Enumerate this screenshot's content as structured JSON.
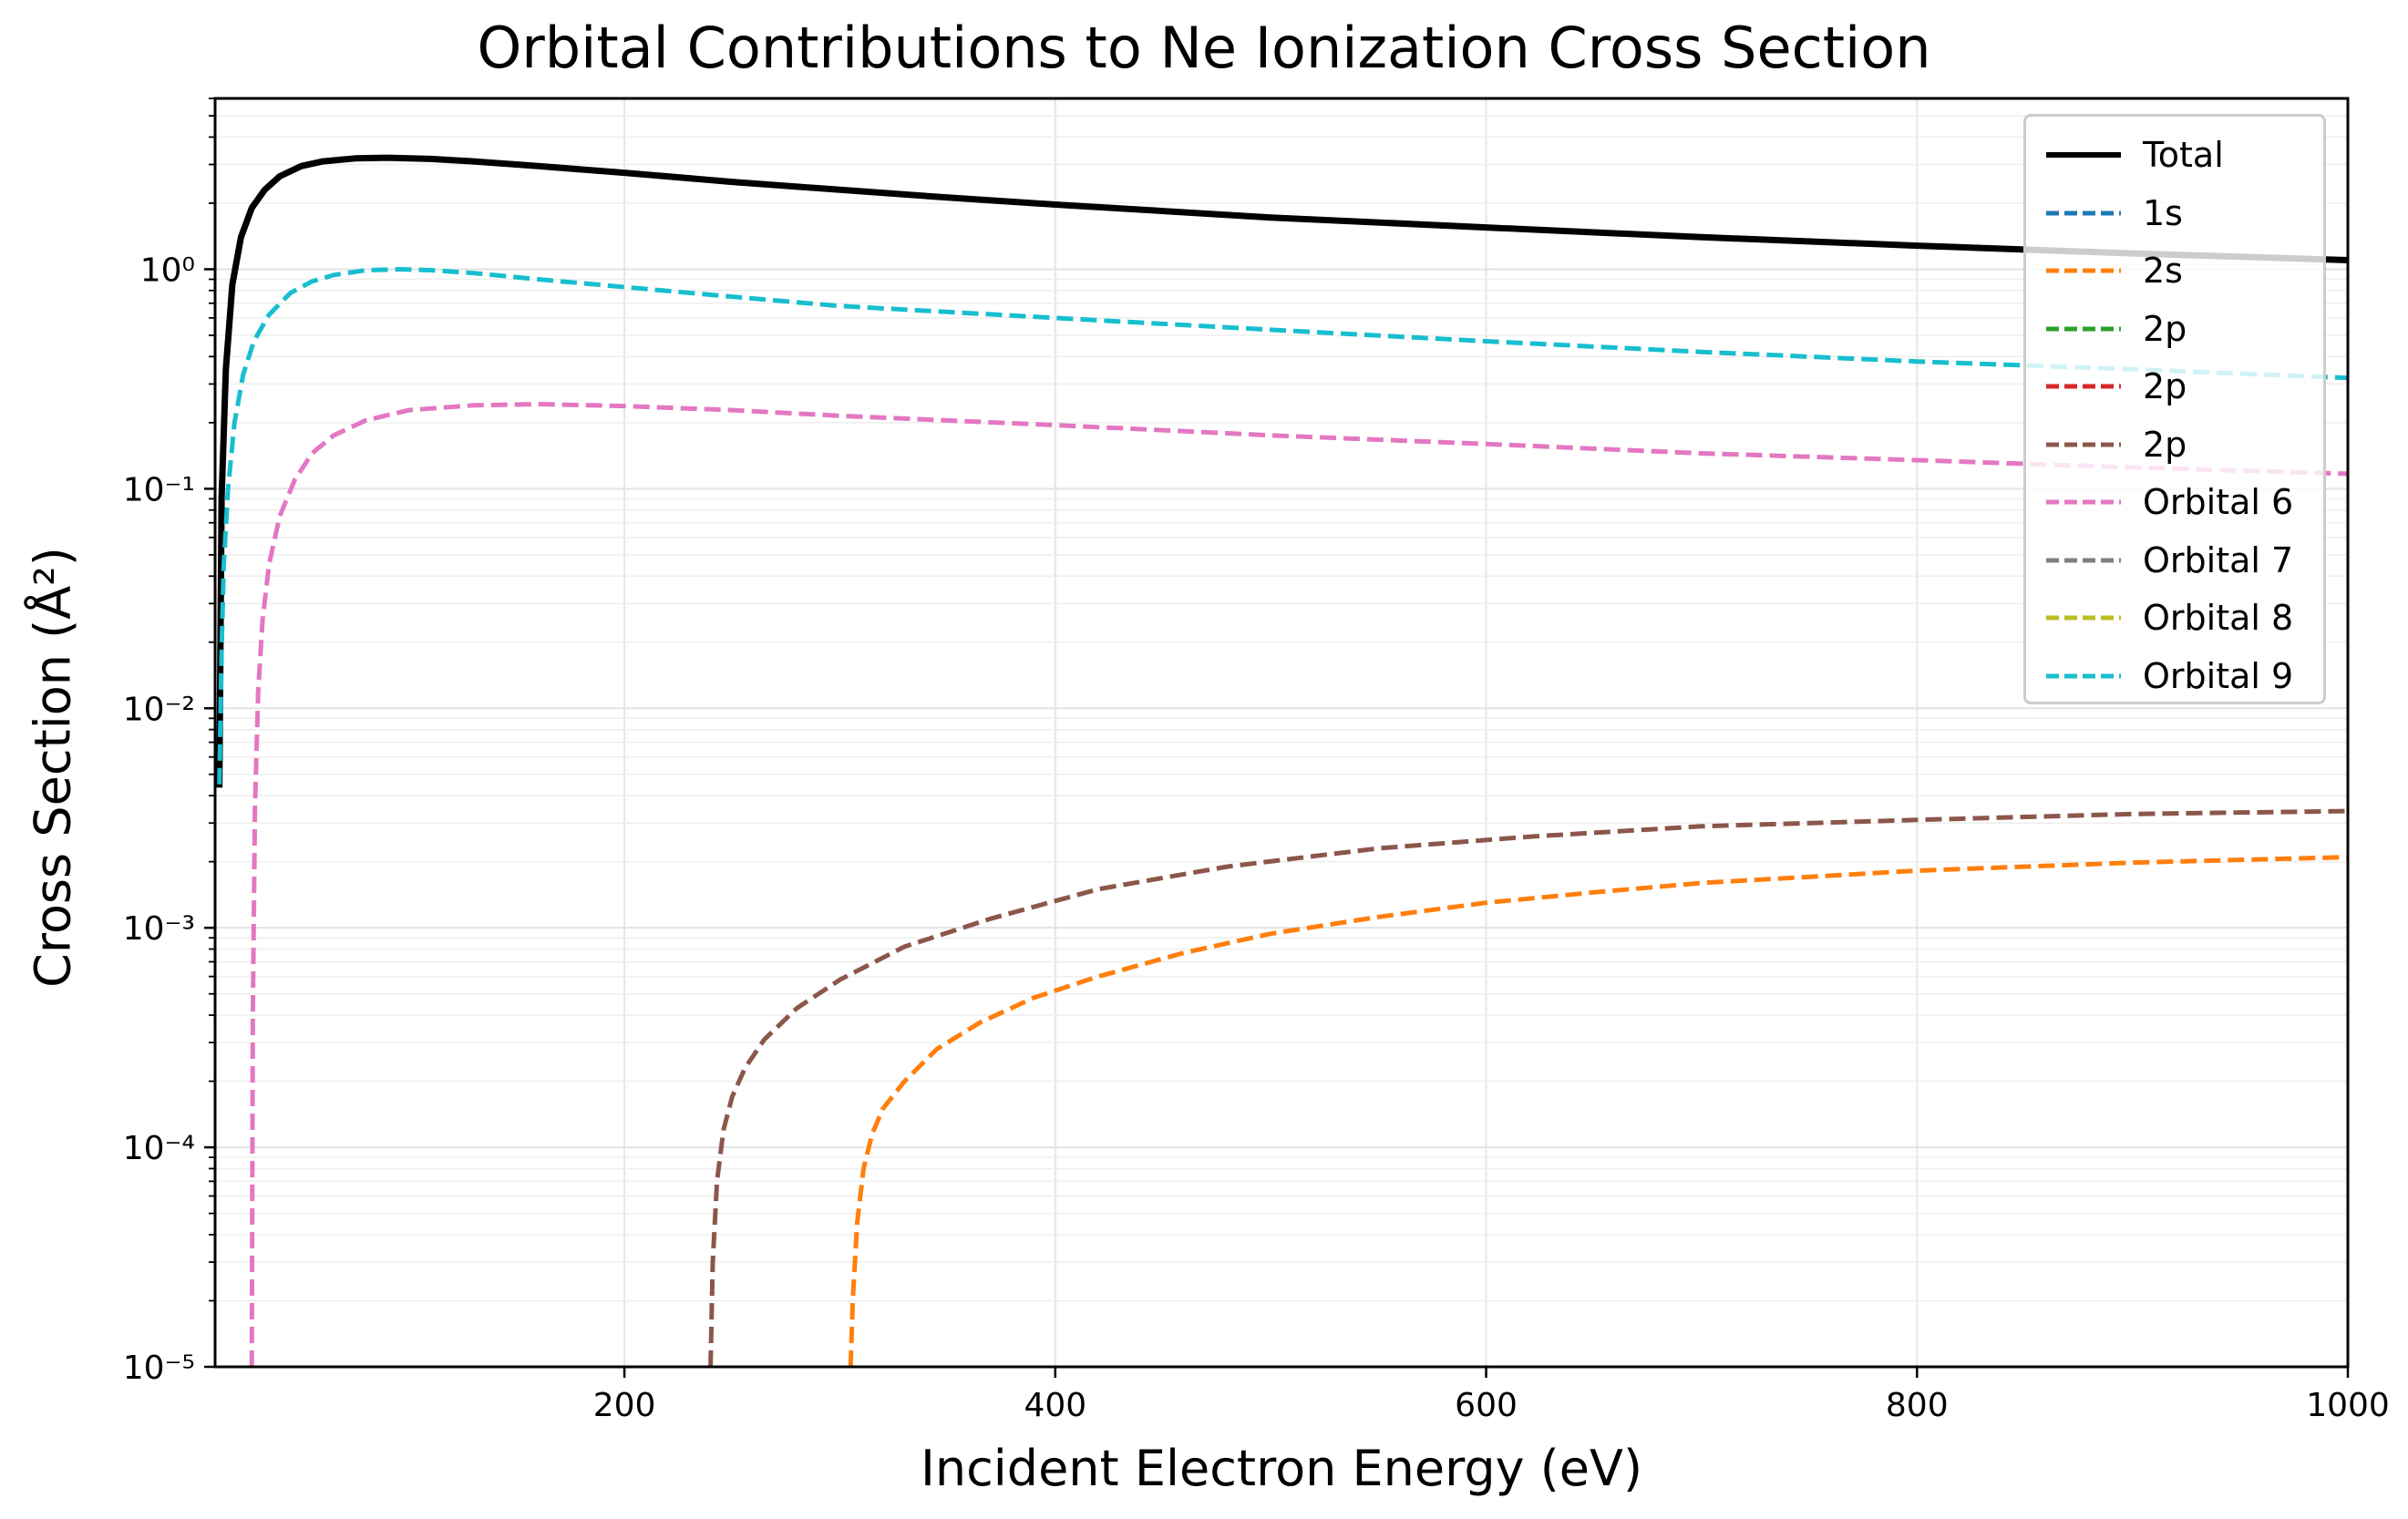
{
  "chart_data": {
    "type": "line",
    "title": "Orbital Contributions to Ne Ionization Cross Section",
    "xlabel": "Incident Electron Energy (eV)",
    "ylabel": "Cross Section (Å²)",
    "xlim": [
      10,
      1000
    ],
    "ylim": [
      1e-05,
      6
    ],
    "xscale": "linear",
    "yscale": "log",
    "xticks": [
      200,
      400,
      600,
      800,
      1000
    ],
    "yticks": [
      1e-05,
      0.0001,
      0.001,
      0.01,
      0.1,
      1
    ],
    "ytick_labels": [
      "10⁻⁵",
      "10⁻⁴",
      "10⁻³",
      "10⁻²",
      "10⁻¹",
      "10⁰"
    ],
    "grid": "on",
    "legend_position": "top-right",
    "series": [
      {
        "name": "Total",
        "color": "#000000",
        "style": "solid",
        "x": [
          12,
          13,
          15,
          18,
          22,
          27,
          33,
          40,
          50,
          60,
          75,
          90,
          110,
          130,
          160,
          200,
          250,
          300,
          350,
          400,
          500,
          600,
          700,
          800,
          900,
          1000
        ],
        "y": [
          0.0045,
          0.09,
          0.35,
          0.85,
          1.4,
          1.9,
          2.3,
          2.65,
          2.95,
          3.1,
          3.2,
          3.22,
          3.18,
          3.1,
          2.95,
          2.75,
          2.5,
          2.3,
          2.12,
          1.97,
          1.72,
          1.55,
          1.4,
          1.28,
          1.18,
          1.1
        ]
      },
      {
        "name": "1s",
        "color": "#1f77b4",
        "style": "dashed",
        "x": [],
        "y": []
      },
      {
        "name": "2s",
        "color": "#ff7f0e",
        "style": "dashed",
        "x": [
          305,
          306,
          308,
          311,
          315,
          320,
          330,
          345,
          365,
          390,
          420,
          460,
          500,
          550,
          600,
          650,
          700,
          800,
          900,
          1000
        ],
        "y": [
          1e-05,
          2e-05,
          4.5e-05,
          8e-05,
          0.000115,
          0.00015,
          0.0002,
          0.00028,
          0.00037,
          0.00048,
          0.0006,
          0.00077,
          0.00094,
          0.00112,
          0.0013,
          0.00145,
          0.0016,
          0.00182,
          0.00198,
          0.0021
        ]
      },
      {
        "name": "2p",
        "color": "#2ca02c",
        "style": "dashed",
        "x": [],
        "y": []
      },
      {
        "name": "2p",
        "color": "#d62728",
        "style": "dashed",
        "x": [],
        "y": []
      },
      {
        "name": "2p",
        "color": "#8c564b",
        "style": "dashed",
        "x": [
          240,
          241,
          243,
          246,
          250,
          256,
          265,
          280,
          300,
          330,
          370,
          420,
          480,
          550,
          620,
          700,
          800,
          900,
          1000
        ],
        "y": [
          1e-05,
          3e-05,
          7e-05,
          0.00012,
          0.00017,
          0.00023,
          0.00031,
          0.00043,
          0.00058,
          0.00082,
          0.0011,
          0.0015,
          0.0019,
          0.0023,
          0.0026,
          0.0029,
          0.0031,
          0.0033,
          0.0034
        ]
      },
      {
        "name": "Orbital 6",
        "color": "#e377c2",
        "style": "dashed",
        "x": [
          27,
          27.5,
          28.5,
          30,
          32,
          35,
          40,
          47,
          55,
          65,
          80,
          100,
          130,
          160,
          200,
          250,
          300,
          400,
          500,
          600,
          700,
          800,
          900,
          1000
        ],
        "y": [
          1e-05,
          0.0004,
          0.0035,
          0.012,
          0.025,
          0.045,
          0.075,
          0.11,
          0.145,
          0.175,
          0.205,
          0.228,
          0.24,
          0.243,
          0.238,
          0.228,
          0.215,
          0.195,
          0.175,
          0.16,
          0.145,
          0.135,
          0.125,
          0.117
        ]
      },
      {
        "name": "Orbital 7",
        "color": "#7f7f7f",
        "style": "dashed",
        "x": [],
        "y": []
      },
      {
        "name": "Orbital 8",
        "color": "#bcbd22",
        "style": "dashed",
        "x": [],
        "y": []
      },
      {
        "name": "Orbital 9",
        "color": "#17becf",
        "style": "dashed",
        "x": [
          12,
          13,
          14,
          16,
          19,
          23,
          28,
          35,
          45,
          55,
          65,
          80,
          95,
          110,
          130,
          160,
          200,
          250,
          300,
          400,
          500,
          600,
          700,
          800,
          900,
          1000
        ],
        "y": [
          0.0045,
          0.018,
          0.045,
          0.1,
          0.2,
          0.33,
          0.47,
          0.62,
          0.78,
          0.88,
          0.94,
          0.99,
          1.0,
          0.99,
          0.96,
          0.9,
          0.83,
          0.75,
          0.68,
          0.6,
          0.53,
          0.47,
          0.42,
          0.38,
          0.35,
          0.32
        ]
      }
    ]
  }
}
